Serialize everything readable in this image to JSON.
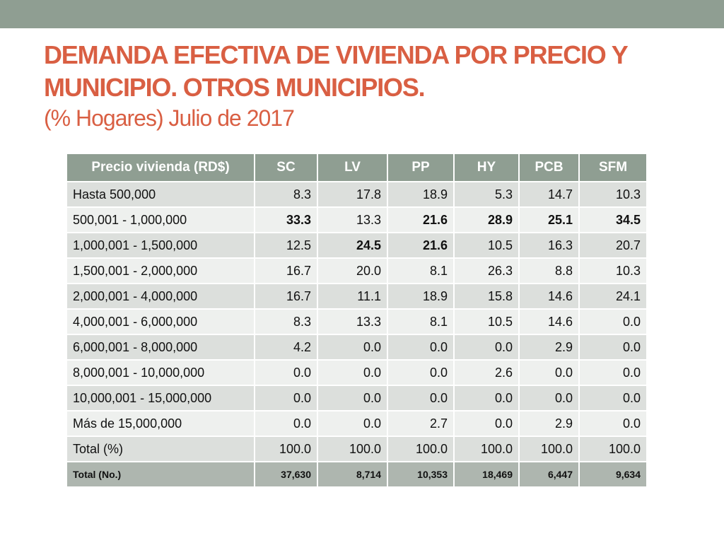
{
  "slide": {
    "title_line1": "DEMANDA EFECTIVA DE VIVIENDA POR PRECIO Y",
    "title_line2": "MUNICIPIO. OTROS MUNICIPIOS.",
    "subtitle": "(% Hogares) Julio de 2017"
  },
  "table": {
    "headers": [
      "Precio vivienda (RD$)",
      "SC",
      "LV",
      "PP",
      "HY",
      "PCB",
      "SFM"
    ],
    "rows": [
      {
        "label": "Hasta 500,000",
        "values": [
          "8.3",
          "17.8",
          "18.9",
          "5.3",
          "14.7",
          "10.3"
        ]
      },
      {
        "label": "500,001 - 1,000,000",
        "values": [
          "33.3",
          "13.3",
          "21.6",
          "28.9",
          "25.1",
          "34.5"
        ]
      },
      {
        "label": "1,000,001 - 1,500,000",
        "values": [
          "12.5",
          "24.5",
          "21.6",
          "10.5",
          "16.3",
          "20.7"
        ]
      },
      {
        "label": "1,500,001 - 2,000,000",
        "values": [
          "16.7",
          "20.0",
          "8.1",
          "26.3",
          "8.8",
          "10.3"
        ]
      },
      {
        "label": "2,000,001 - 4,000,000",
        "values": [
          "16.7",
          "11.1",
          "18.9",
          "15.8",
          "14.6",
          "24.1"
        ]
      },
      {
        "label": "4,000,001 - 6,000,000",
        "values": [
          "8.3",
          "13.3",
          "8.1",
          "10.5",
          "14.6",
          "0.0"
        ]
      },
      {
        "label": "6,000,001 - 8,000,000",
        "values": [
          "4.2",
          "0.0",
          "0.0",
          "0.0",
          "2.9",
          "0.0"
        ]
      },
      {
        "label": "8,000,001 - 10,000,000",
        "values": [
          "0.0",
          "0.0",
          "0.0",
          "2.6",
          "0.0",
          "0.0"
        ]
      },
      {
        "label": "10,000,001 - 15,000,000",
        "values": [
          "0.0",
          "0.0",
          "0.0",
          "0.0",
          "0.0",
          "0.0"
        ]
      },
      {
        "label": "Más de 15,000,000",
        "values": [
          "0.0",
          "0.0",
          "2.7",
          "0.0",
          "2.9",
          "0.0"
        ]
      },
      {
        "label": "Total (%)",
        "values": [
          "100.0",
          "100.0",
          "100.0",
          "100.0",
          "100.0",
          "100.0"
        ]
      },
      {
        "label": "Total (No.)",
        "values": [
          "37,630",
          "8,714",
          "10,353",
          "18,469",
          "6,447",
          "9,634"
        ]
      }
    ]
  },
  "colors": {
    "title": "#d95f43",
    "band": "#8f9e92",
    "header_bg": "#8f9e92",
    "row_odd": "#dcdfdc",
    "row_even": "#eef0ee",
    "total_row": "#aeb6af"
  }
}
